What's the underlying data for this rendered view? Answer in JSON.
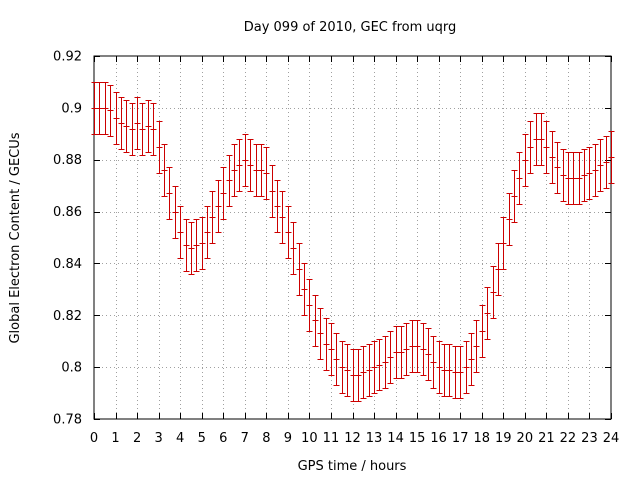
{
  "chart_data": {
    "type": "line",
    "title": "Day 099 of 2010, GEC from uqrg",
    "xlabel": "GPS time / hours",
    "ylabel": "Global Electron Content / GECUs",
    "xlim": [
      0,
      24
    ],
    "ylim": [
      0.78,
      0.92
    ],
    "xticks": [
      0,
      1,
      2,
      3,
      4,
      5,
      6,
      7,
      8,
      9,
      10,
      11,
      12,
      13,
      14,
      15,
      16,
      17,
      18,
      19,
      20,
      21,
      22,
      23,
      24
    ],
    "yticks": [
      0.78,
      0.8,
      0.82,
      0.84,
      0.86,
      0.88,
      0.9,
      0.92
    ],
    "ytick_labels": [
      "0.78",
      "0.8",
      "0.82",
      "0.84",
      "0.86",
      "0.88",
      "0.9",
      "0.92"
    ],
    "grid": true,
    "error_bar": 0.01,
    "series": [
      {
        "name": "GEC",
        "color": "#cc0000",
        "x": [
          0,
          0.25,
          0.5,
          0.75,
          1,
          1.25,
          1.5,
          1.75,
          2,
          2.25,
          2.5,
          2.75,
          3,
          3.25,
          3.5,
          3.75,
          4,
          4.25,
          4.5,
          4.75,
          5,
          5.25,
          5.5,
          5.75,
          6,
          6.25,
          6.5,
          6.75,
          7,
          7.25,
          7.5,
          7.75,
          8,
          8.25,
          8.5,
          8.75,
          9,
          9.25,
          9.5,
          9.75,
          10,
          10.25,
          10.5,
          10.75,
          11,
          11.25,
          11.5,
          11.75,
          12,
          12.25,
          12.5,
          12.75,
          13,
          13.25,
          13.5,
          13.75,
          14,
          14.25,
          14.5,
          14.75,
          15,
          15.25,
          15.5,
          15.75,
          16,
          16.25,
          16.5,
          16.75,
          17,
          17.25,
          17.5,
          17.75,
          18,
          18.25,
          18.5,
          18.75,
          19,
          19.25,
          19.5,
          19.75,
          20,
          20.25,
          20.5,
          20.75,
          21,
          21.25,
          21.5,
          21.75,
          22,
          22.25,
          22.5,
          22.75,
          23,
          23.25,
          23.5,
          23.75,
          24
        ],
        "values": [
          0.9,
          0.9,
          0.9,
          0.899,
          0.896,
          0.894,
          0.893,
          0.892,
          0.894,
          0.892,
          0.893,
          0.892,
          0.885,
          0.876,
          0.867,
          0.86,
          0.852,
          0.847,
          0.846,
          0.847,
          0.848,
          0.852,
          0.858,
          0.862,
          0.867,
          0.872,
          0.876,
          0.878,
          0.88,
          0.878,
          0.876,
          0.876,
          0.875,
          0.868,
          0.862,
          0.858,
          0.852,
          0.846,
          0.838,
          0.83,
          0.824,
          0.818,
          0.813,
          0.809,
          0.807,
          0.803,
          0.8,
          0.799,
          0.797,
          0.797,
          0.798,
          0.799,
          0.8,
          0.801,
          0.802,
          0.804,
          0.806,
          0.806,
          0.807,
          0.808,
          0.808,
          0.807,
          0.805,
          0.802,
          0.8,
          0.799,
          0.799,
          0.798,
          0.798,
          0.8,
          0.803,
          0.808,
          0.814,
          0.821,
          0.829,
          0.838,
          0.848,
          0.857,
          0.866,
          0.873,
          0.88,
          0.885,
          0.888,
          0.888,
          0.885,
          0.881,
          0.877,
          0.874,
          0.873,
          0.873,
          0.873,
          0.874,
          0.875,
          0.876,
          0.878,
          0.879,
          0.881
        ]
      }
    ]
  }
}
